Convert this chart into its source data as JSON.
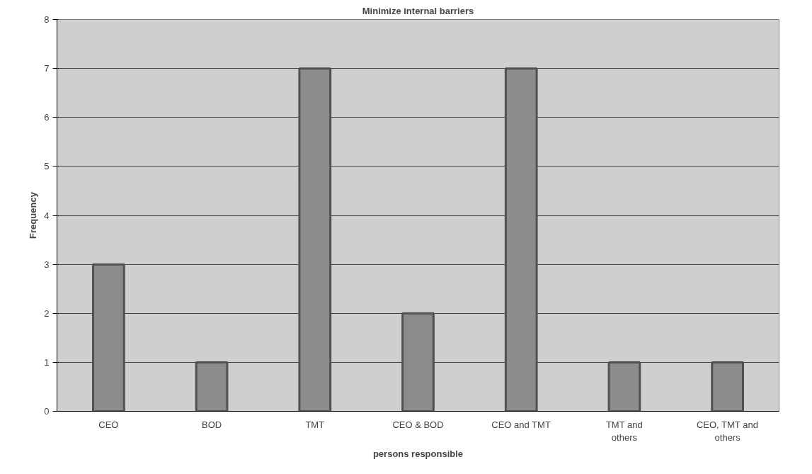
{
  "chart_data": {
    "type": "bar",
    "title": "Minimize internal barriers",
    "xlabel": "persons responsible",
    "ylabel": "Frequency",
    "categories": [
      "CEO",
      "BOD",
      "TMT",
      "CEO & BOD",
      "CEO and TMT",
      "TMT and others",
      "CEO, TMT and others"
    ],
    "values": [
      3,
      1,
      7,
      2,
      7,
      1,
      1
    ],
    "color": "#8c8c8c",
    "ylim": [
      0,
      8
    ],
    "yticks": [
      0,
      1,
      2,
      3,
      4,
      5,
      6,
      7,
      8
    ],
    "grid": "y"
  }
}
